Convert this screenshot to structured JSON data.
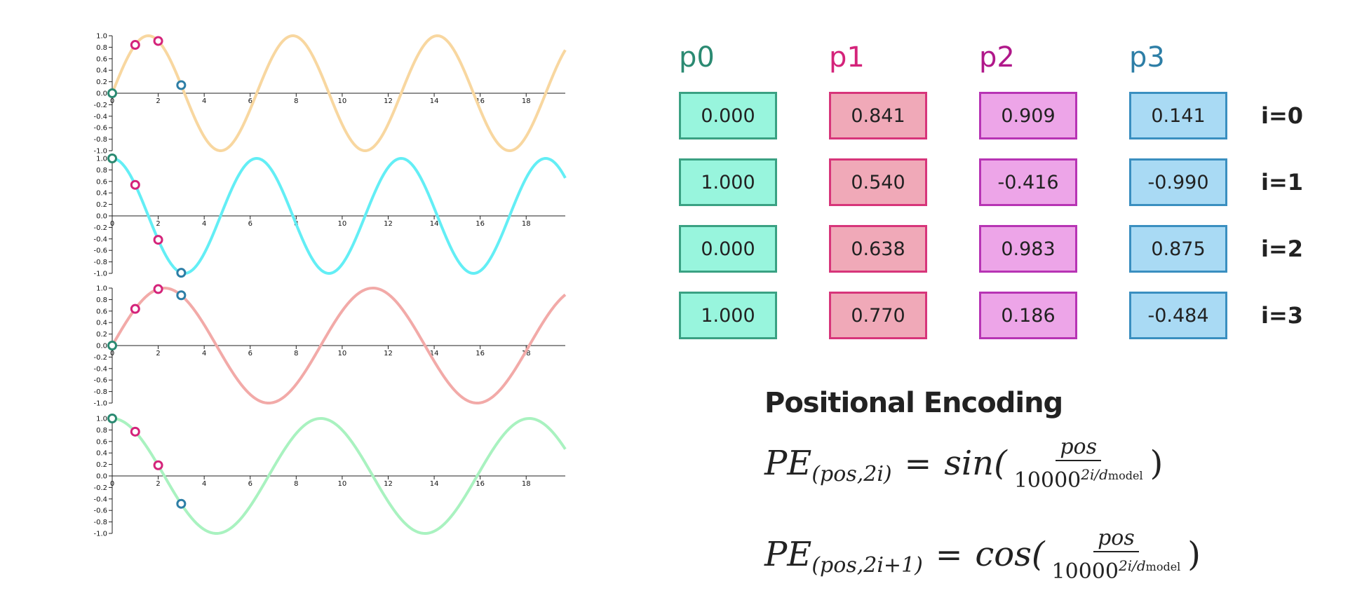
{
  "chart_data": [
    {
      "type": "line",
      "title": "",
      "xlabel": "",
      "ylabel": "",
      "xlim": [
        0,
        19.7
      ],
      "ylim": [
        -1.0,
        1.0
      ],
      "x_ticks": [
        "0",
        "2",
        "4",
        "6",
        "8",
        "10",
        "12",
        "14",
        "16",
        "18"
      ],
      "y_ticks": [
        "1.0",
        "0.8",
        "0.6",
        "0.4",
        "0.2",
        "0.0",
        "-0.2",
        "-0.4",
        "-0.6",
        "-0.8",
        "-1.0"
      ],
      "series": [
        {
          "function": "sin",
          "frequency": 1,
          "color": "#f8d7a0"
        }
      ],
      "points": [
        {
          "x": 0,
          "y": 0.0,
          "color": "#2b8a72"
        },
        {
          "x": 1,
          "y": 0.841,
          "color": "#d4237a"
        },
        {
          "x": 2,
          "y": 0.909,
          "color": "#d4237a"
        },
        {
          "x": 3,
          "y": 0.141,
          "color": "#2d7ea6"
        }
      ]
    },
    {
      "type": "line",
      "title": "",
      "xlabel": "",
      "ylabel": "",
      "xlim": [
        0,
        19.7
      ],
      "ylim": [
        -1.0,
        1.0
      ],
      "x_ticks": [
        "0",
        "2",
        "4",
        "6",
        "8",
        "10",
        "12",
        "14",
        "16",
        "18"
      ],
      "y_ticks": [
        "1.0",
        "0.8",
        "0.6",
        "0.4",
        "0.2",
        "0.0",
        "-0.2",
        "-0.4",
        "-0.6",
        "-0.8",
        "-1.0"
      ],
      "series": [
        {
          "function": "cos",
          "frequency": 1,
          "color": "#63eef5"
        }
      ],
      "points": [
        {
          "x": 0,
          "y": 1.0,
          "color": "#2b8a72"
        },
        {
          "x": 1,
          "y": 0.54,
          "color": "#d4237a"
        },
        {
          "x": 2,
          "y": -0.416,
          "color": "#d4237a"
        },
        {
          "x": 3,
          "y": -0.99,
          "color": "#2d7ea6"
        }
      ]
    },
    {
      "type": "line",
      "title": "",
      "xlabel": "",
      "ylabel": "",
      "xlim": [
        0,
        19.7
      ],
      "ylim": [
        -1.0,
        1.0
      ],
      "x_ticks": [
        "0",
        "2",
        "4",
        "6",
        "8",
        "10",
        "12",
        "14",
        "16",
        "18"
      ],
      "y_ticks": [
        "1.0",
        "0.8",
        "0.6",
        "0.4",
        "0.2",
        "0.0",
        "-0.2",
        "-0.4",
        "-0.6",
        "-0.8",
        "-1.0"
      ],
      "series": [
        {
          "function": "sin",
          "frequency": 0.693,
          "color": "#f2aaa8"
        }
      ],
      "points": [
        {
          "x": 0,
          "y": 0.0,
          "color": "#2b8a72"
        },
        {
          "x": 1,
          "y": 0.638,
          "color": "#d4237a"
        },
        {
          "x": 2,
          "y": 0.983,
          "color": "#d4237a"
        },
        {
          "x": 3,
          "y": 0.875,
          "color": "#2d7ea6"
        }
      ]
    },
    {
      "type": "line",
      "title": "",
      "xlabel": "",
      "ylabel": "",
      "xlim": [
        0,
        19.7
      ],
      "ylim": [
        -1.0,
        1.0
      ],
      "x_ticks": [
        "0",
        "2",
        "4",
        "6",
        "8",
        "10",
        "12",
        "14",
        "16",
        "18"
      ],
      "y_ticks": [
        "1.0",
        "0.8",
        "0.6",
        "0.4",
        "0.2",
        "0.0",
        "-0.2",
        "-0.4",
        "-0.6",
        "-0.8",
        "-1.0"
      ],
      "series": [
        {
          "function": "cos",
          "frequency": 0.693,
          "color": "#a9f2c0"
        }
      ],
      "points": [
        {
          "x": 0,
          "y": 1.0,
          "color": "#2b8a72"
        },
        {
          "x": 1,
          "y": 0.77,
          "color": "#d4237a"
        },
        {
          "x": 2,
          "y": 0.186,
          "color": "#d4237a"
        },
        {
          "x": 3,
          "y": -0.484,
          "color": "#2d7ea6"
        }
      ]
    }
  ],
  "table": {
    "columns": [
      {
        "label": "p0",
        "color": "#2b8a72",
        "fill": "#98f5dd",
        "border": "#3aa183"
      },
      {
        "label": "p1",
        "color": "#d4237a",
        "fill": "#f0a9b8",
        "border": "#d7357a"
      },
      {
        "label": "p2",
        "color": "#b0188a",
        "fill": "#eda5e8",
        "border": "#b734b4"
      },
      {
        "label": "p3",
        "color": "#2d7ea6",
        "fill": "#a9daf4",
        "border": "#3a8fc0"
      }
    ],
    "rows": [
      {
        "label": "i=0",
        "values": [
          "0.000",
          "0.841",
          "0.909",
          "0.141"
        ]
      },
      {
        "label": "i=1",
        "values": [
          "1.000",
          "0.540",
          "-0.416",
          "-0.990"
        ]
      },
      {
        "label": "i=2",
        "values": [
          "0.000",
          "0.638",
          "0.983",
          "0.875"
        ]
      },
      {
        "label": "i=3",
        "values": [
          "1.000",
          "0.770",
          "0.186",
          "-0.484"
        ]
      }
    ]
  },
  "formula": {
    "title": "Positional Encoding",
    "f1": {
      "lhs": "PE",
      "sub": "(pos,2i)",
      "eq": "=",
      "fn": "sin(",
      "num": "pos",
      "base": "10000",
      "exp": "2i/d",
      "exp_sub": "model",
      "close": ")"
    },
    "f2": {
      "lhs": "PE",
      "sub": "(pos,2i+1)",
      "eq": "=",
      "fn": "cos(",
      "num": "pos",
      "base": "10000",
      "exp": "2i/d",
      "exp_sub": "model",
      "close": ")"
    }
  }
}
